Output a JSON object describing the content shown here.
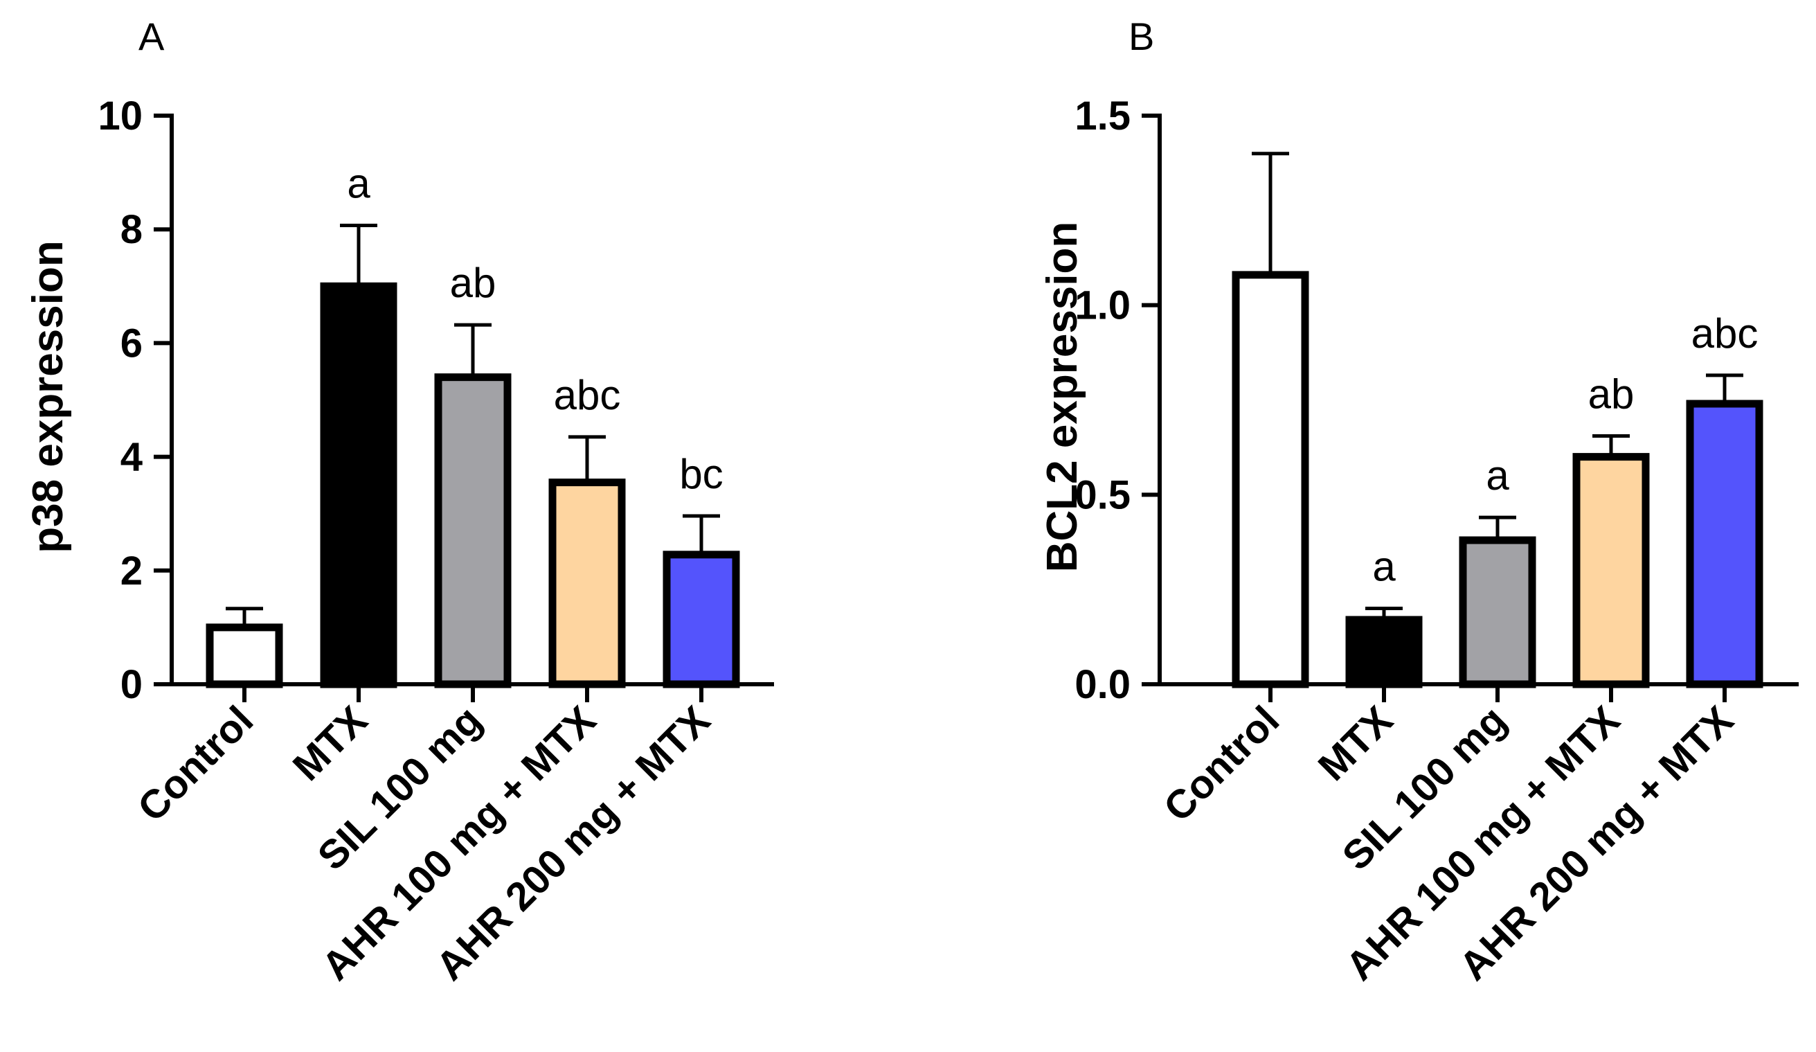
{
  "chart_data": [
    {
      "panel": "A",
      "type": "bar",
      "ylabel": "p38 expression",
      "ylim": [
        0,
        10
      ],
      "yticks": [
        0,
        2,
        4,
        6,
        8,
        10
      ],
      "ytick_labels": [
        "0",
        "2",
        "4",
        "6",
        "8",
        "10"
      ],
      "categories": [
        "Control",
        "MTX",
        "SIL 100 mg",
        "AHR 100 mg + MTX",
        "AHR 200 mg + MTX"
      ],
      "values": [
        1.0,
        7.0,
        5.4,
        3.55,
        2.28
      ],
      "errors": [
        0.33,
        1.07,
        0.92,
        0.8,
        0.68
      ],
      "significance": [
        "",
        "a",
        "ab",
        "abc",
        "bc"
      ],
      "colors": [
        "#ffffff",
        "#000000",
        "#a2a2a6",
        "#fed5a0",
        "#5454fc"
      ]
    },
    {
      "panel": "B",
      "type": "bar",
      "ylabel": "BCL2 expression",
      "ylim": [
        0,
        1.5
      ],
      "yticks": [
        0,
        0.5,
        1.0,
        1.5
      ],
      "ytick_labels": [
        "0.0",
        "0.5",
        "1.0",
        "1.5"
      ],
      "categories": [
        "Control",
        "MTX",
        "SIL 100 mg",
        "AHR 100 mg + MTX",
        "AHR 200 mg + MTX"
      ],
      "values": [
        1.08,
        0.17,
        0.38,
        0.6,
        0.74
      ],
      "errors": [
        0.32,
        0.03,
        0.06,
        0.055,
        0.075
      ],
      "significance": [
        "",
        "a",
        "a",
        "ab",
        "abc"
      ],
      "colors": [
        "#ffffff",
        "#000000",
        "#a2a2a6",
        "#fed5a0",
        "#5454fc"
      ]
    }
  ]
}
